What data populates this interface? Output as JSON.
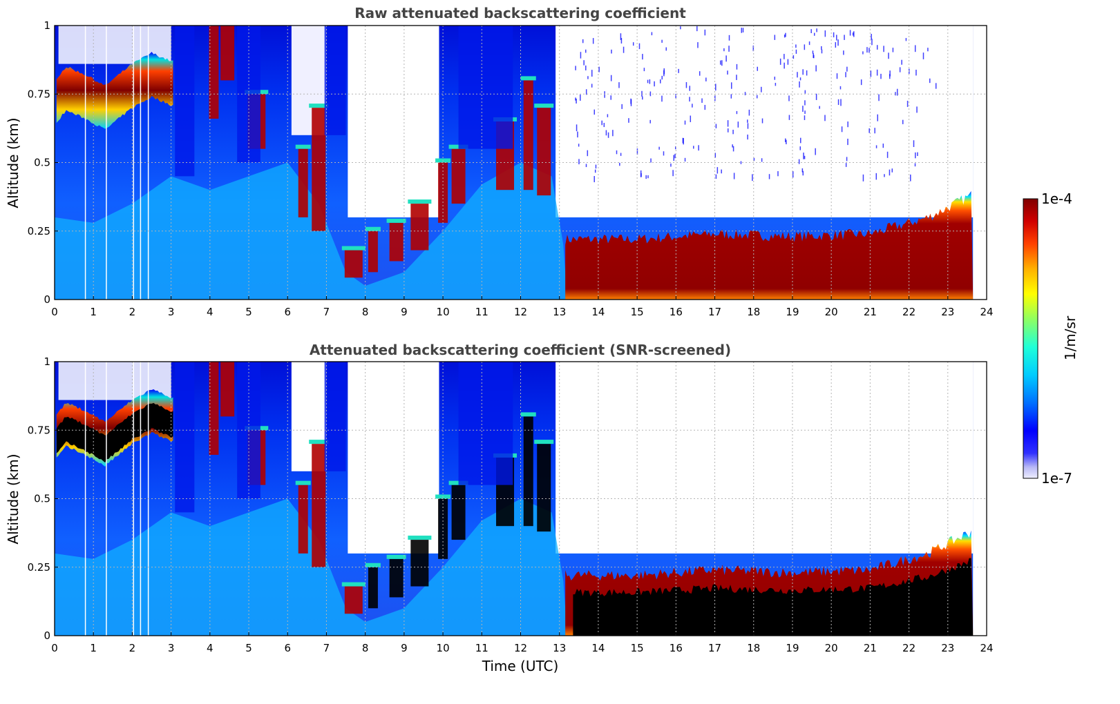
{
  "chart_data": [
    {
      "type": "heatmap",
      "title": "Raw attenuated backscattering coefficient",
      "ylabel": "Altitude (km)",
      "xlabel": "",
      "xlim": [
        0,
        24
      ],
      "ylim": [
        0,
        1
      ],
      "x_ticks": [
        "0",
        "1",
        "2",
        "3",
        "4",
        "5",
        "6",
        "7",
        "8",
        "9",
        "10",
        "11",
        "12",
        "13",
        "14",
        "15",
        "16",
        "17",
        "18",
        "19",
        "20",
        "21",
        "22",
        "23",
        "24"
      ],
      "y_ticks": [
        "0",
        "0.25",
        "0.5",
        "0.75",
        "1"
      ],
      "grid": true,
      "data_end_hour": 23.65,
      "features": {
        "upper_layer_hours": [
          0,
          3.1
        ],
        "cloud_base_km": [
          [
            0,
            0.68
          ],
          [
            0.3,
            0.73
          ],
          [
            0.8,
            0.7
          ],
          [
            1.3,
            0.66
          ],
          [
            2.0,
            0.74
          ],
          [
            2.5,
            0.78
          ],
          [
            3.0,
            0.75
          ]
        ],
        "clear_gap_hours": [
          [
            7.55,
            9.9
          ]
        ],
        "boundary_layer_top_km": [
          [
            13.3,
            0.22
          ],
          [
            15,
            0.22
          ],
          [
            17,
            0.24
          ],
          [
            19,
            0.23
          ],
          [
            21,
            0.24
          ],
          [
            22.5,
            0.3
          ],
          [
            23.6,
            0.38
          ]
        ]
      }
    },
    {
      "type": "heatmap",
      "title": "Attenuated backscattering coefficient (SNR-screened)",
      "ylabel": "Altitude (km)",
      "xlabel": "Time (UTC)",
      "xlim": [
        0,
        24
      ],
      "ylim": [
        0,
        1
      ],
      "x_ticks": [
        "0",
        "1",
        "2",
        "3",
        "4",
        "5",
        "6",
        "7",
        "8",
        "9",
        "10",
        "11",
        "12",
        "13",
        "14",
        "15",
        "16",
        "17",
        "18",
        "19",
        "20",
        "21",
        "22",
        "23",
        "24"
      ],
      "y_ticks": [
        "0",
        "0.25",
        "0.5",
        "0.75",
        "1"
      ],
      "grid": true,
      "saturated_color": "#000000"
    }
  ],
  "colorbar": {
    "label": "1/m/sr",
    "max_label": "1e-4",
    "min_label": "1e-7",
    "scale": "log",
    "range": [
      1e-07,
      0.0001
    ],
    "colormap": "jet"
  }
}
